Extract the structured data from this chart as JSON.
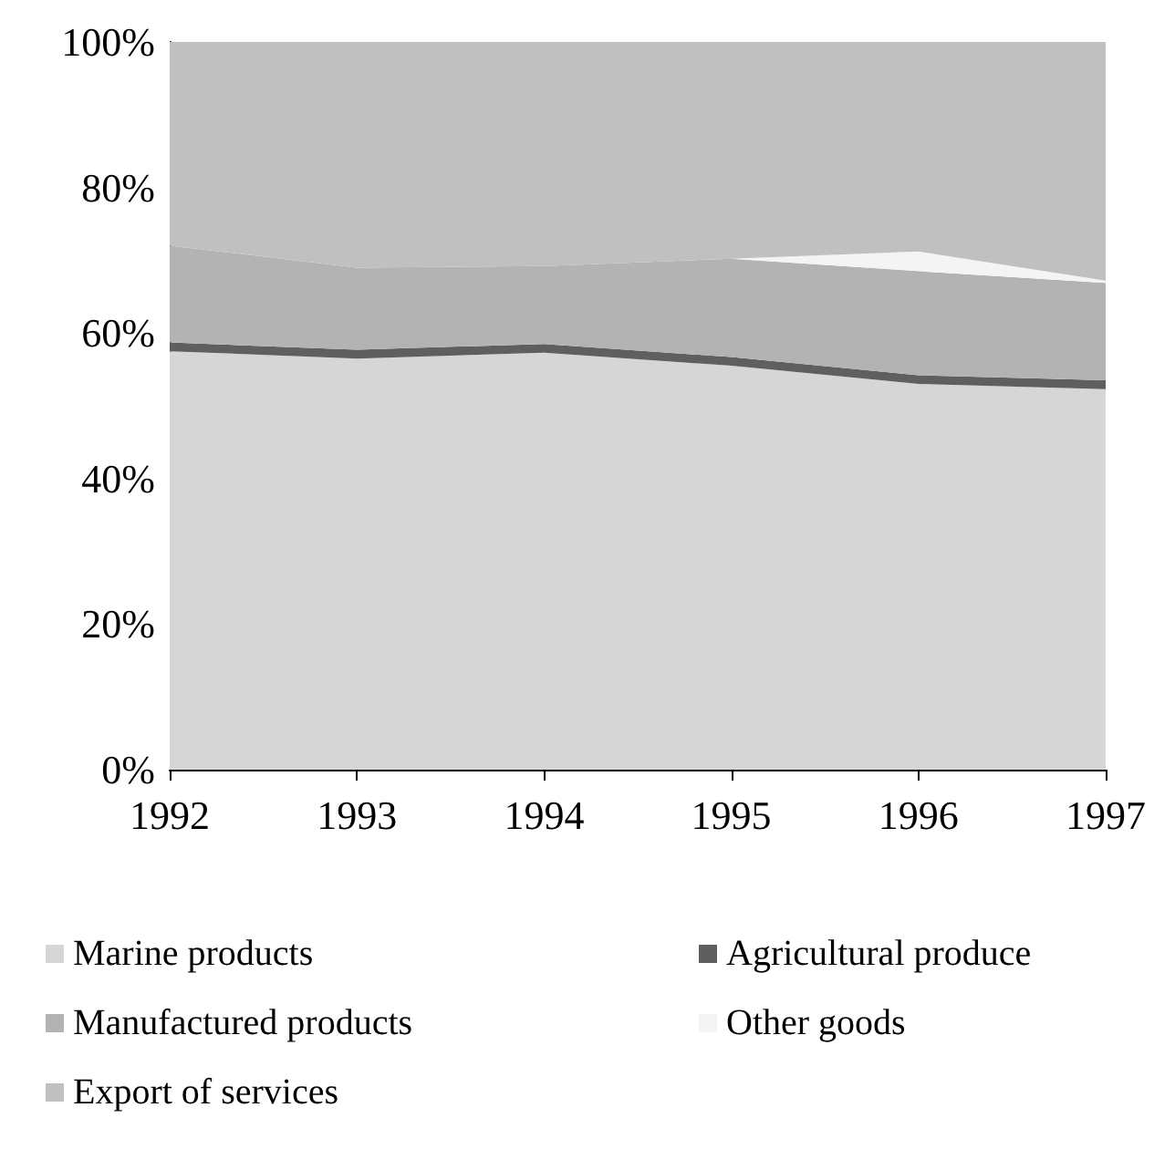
{
  "chart_data": {
    "type": "area",
    "stacked": true,
    "categories": [
      "1992",
      "1993",
      "1994",
      "1995",
      "1996",
      "1997"
    ],
    "ylim": [
      0,
      100
    ],
    "yticks": [
      {
        "value": 0,
        "label": "0%"
      },
      {
        "value": 20,
        "label": "20%"
      },
      {
        "value": 40,
        "label": "40%"
      },
      {
        "value": 60,
        "label": "60%"
      },
      {
        "value": 80,
        "label": "80%"
      },
      {
        "value": 100,
        "label": "100%"
      }
    ],
    "grid": false,
    "legend": "bottom",
    "series": [
      {
        "name": "Marine products",
        "color": "#d6d6d6",
        "values": [
          57.5,
          56.5,
          57.3,
          55.5,
          53,
          52.3
        ]
      },
      {
        "name": "Agricultural produce",
        "color": "#5f5f5f",
        "values": [
          1.2,
          1.2,
          1.2,
          1.2,
          1.2,
          1.2
        ]
      },
      {
        "name": "Manufactured products",
        "color": "#b3b3b3",
        "values": [
          13.3,
          11.3,
          10.7,
          13.5,
          14.3,
          13.4
        ]
      },
      {
        "name": "Other goods",
        "color": "#f4f4f4",
        "values": [
          0,
          0,
          0,
          0,
          2.7,
          0.3
        ]
      },
      {
        "name": "Export of services",
        "color": "#c0c0c0",
        "values": [
          28,
          31,
          30.8,
          29.8,
          28.8,
          32.8
        ]
      }
    ]
  }
}
